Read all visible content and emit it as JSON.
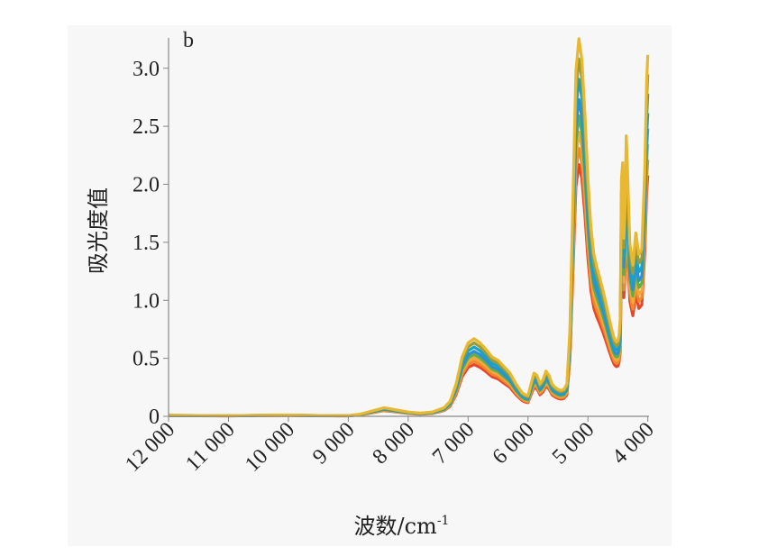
{
  "chart_data": {
    "type": "line",
    "panel_label": "b",
    "xlabel": "波数/cm",
    "xlabel_superscript": "-1",
    "ylabel": "吸光度值",
    "x_reversed": true,
    "xlim": [
      12000,
      3980
    ],
    "ylim": [
      0,
      3.2
    ],
    "x_ticks": [
      12000,
      11000,
      10000,
      9000,
      8000,
      7000,
      6000,
      5000,
      4000
    ],
    "x_tick_labels": [
      "12 000",
      "11 000",
      "10 000",
      "9 000",
      "8 000",
      "7 000",
      "6 000",
      "5 000",
      "4 000"
    ],
    "y_ticks": [
      0,
      0.5,
      1.0,
      1.5,
      2.0,
      2.5,
      3.0
    ],
    "y_tick_labels": [
      "0",
      "0.5",
      "1.0",
      "1.5",
      "2.0",
      "2.5",
      "3.0"
    ],
    "grid": false,
    "legend": "none",
    "series_colors": [
      "#e8442a",
      "#f0892b",
      "#f2a93a",
      "#5fae4a",
      "#2e8fd6",
      "#17a3c9",
      "#9b9b3a",
      "#e8b830"
    ],
    "series_scales": [
      0.62,
      0.66,
      0.7,
      0.74,
      0.78,
      0.83,
      0.88,
      0.93
    ],
    "base_spectrum": {
      "x": [
        12000,
        11500,
        11000,
        10500,
        10000,
        9500,
        9000,
        8800,
        8600,
        8400,
        8200,
        8000,
        7800,
        7600,
        7400,
        7300,
        7200,
        7100,
        7000,
        6900,
        6800,
        6700,
        6600,
        6500,
        6400,
        6300,
        6200,
        6100,
        6050,
        6000,
        5950,
        5900,
        5850,
        5800,
        5750,
        5700,
        5650,
        5600,
        5550,
        5500,
        5450,
        5400,
        5350,
        5300,
        5250,
        5200,
        5150,
        5100,
        5050,
        5000,
        4950,
        4900,
        4850,
        4800,
        4750,
        4700,
        4650,
        4620,
        4600,
        4580,
        4560,
        4540,
        4520,
        4500,
        4480,
        4460,
        4440,
        4420,
        4400,
        4380,
        4360,
        4340,
        4300,
        4250,
        4200,
        4150,
        4100,
        4050,
        4020,
        4000
      ],
      "y": [
        0.01,
        0.008,
        0.006,
        0.01,
        0.012,
        0.008,
        0.006,
        0.02,
        0.05,
        0.08,
        0.06,
        0.04,
        0.03,
        0.04,
        0.08,
        0.14,
        0.3,
        0.55,
        0.68,
        0.72,
        0.68,
        0.62,
        0.55,
        0.52,
        0.46,
        0.4,
        0.3,
        0.22,
        0.2,
        0.19,
        0.3,
        0.4,
        0.38,
        0.3,
        0.34,
        0.42,
        0.38,
        0.3,
        0.27,
        0.25,
        0.24,
        0.25,
        0.3,
        0.8,
        2.0,
        3.2,
        3.5,
        3.3,
        2.8,
        2.2,
        1.75,
        1.5,
        1.38,
        1.28,
        1.17,
        1.05,
        0.92,
        0.85,
        0.8,
        0.76,
        0.72,
        0.7,
        0.69,
        0.7,
        0.75,
        0.9,
        2.2,
        2.35,
        1.65,
        1.95,
        2.6,
        2.3,
        1.6,
        1.4,
        1.7,
        1.5,
        1.55,
        2.3,
        3.1,
        3.35
      ]
    }
  }
}
